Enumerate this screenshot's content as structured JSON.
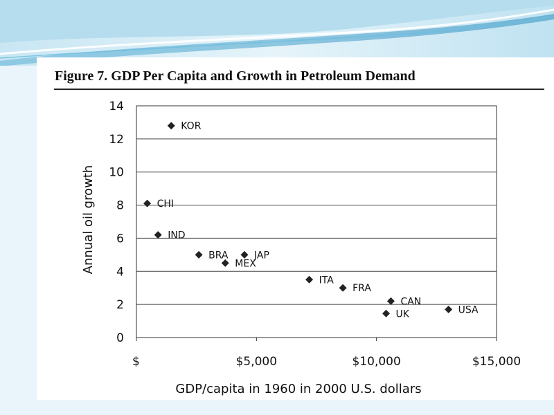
{
  "figure": {
    "title": "Figure 7. GDP Per Capita and Growth in Petroleum Demand"
  },
  "chart_data": {
    "type": "scatter",
    "title": "Figure 7. GDP Per Capita and Growth in Petroleum Demand",
    "xlabel": "GDP/capita in 1960 in 2000 U.S. dollars",
    "ylabel": "Annual oil growth",
    "xlim": [
      0,
      15000
    ],
    "ylim": [
      0,
      14
    ],
    "x_ticks": [
      0,
      5000,
      10000,
      15000
    ],
    "x_tick_labels": [
      "$",
      "$5,000",
      "$10,000",
      "$15,000"
    ],
    "y_ticks": [
      0,
      2,
      4,
      6,
      8,
      10,
      12,
      14
    ],
    "y_tick_labels": [
      "0",
      "2",
      "4",
      "6",
      "8",
      "10",
      "12",
      "14"
    ],
    "grid": "horizontal",
    "marker": "diamond",
    "marker_color": "#222222",
    "points": [
      {
        "label": "KOR",
        "x": 1450,
        "y": 12.8
      },
      {
        "label": "CHI",
        "x": 450,
        "y": 8.1
      },
      {
        "label": "IND",
        "x": 900,
        "y": 6.2
      },
      {
        "label": "BRA",
        "x": 2600,
        "y": 5.0
      },
      {
        "label": "JAP",
        "x": 4500,
        "y": 5.0
      },
      {
        "label": "MEX",
        "x": 3700,
        "y": 4.5
      },
      {
        "label": "ITA",
        "x": 7200,
        "y": 3.5
      },
      {
        "label": "FRA",
        "x": 8600,
        "y": 3.0
      },
      {
        "label": "CAN",
        "x": 10600,
        "y": 2.2
      },
      {
        "label": "UK",
        "x": 10400,
        "y": 1.45
      },
      {
        "label": "USA",
        "x": 13000,
        "y": 1.7
      }
    ]
  }
}
